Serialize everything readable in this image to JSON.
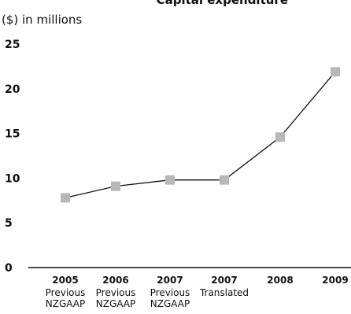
{
  "chart_data": {
    "type": "line",
    "title": "Capital expenditure",
    "unit_label": "($) in millions",
    "categories": [
      {
        "label": "2005",
        "sub": [
          "Previous",
          "NZGAAP"
        ]
      },
      {
        "label": "2006",
        "sub": [
          "Previous",
          "NZGAAP"
        ]
      },
      {
        "label": "2007",
        "sub": [
          "Previous",
          "NZGAAP"
        ]
      },
      {
        "label": "2007",
        "sub": [
          "Translated"
        ]
      },
      {
        "label": "2008",
        "sub": []
      },
      {
        "label": "2009",
        "sub": []
      }
    ],
    "values": [
      7.8,
      9.1,
      9.8,
      9.8,
      14.6,
      21.9
    ],
    "ylim": [
      0,
      25
    ],
    "yticks": [
      0,
      5,
      10,
      15,
      20,
      25
    ],
    "grid": false,
    "marker_color": "#b8b8b8",
    "line_color": "#111111"
  }
}
